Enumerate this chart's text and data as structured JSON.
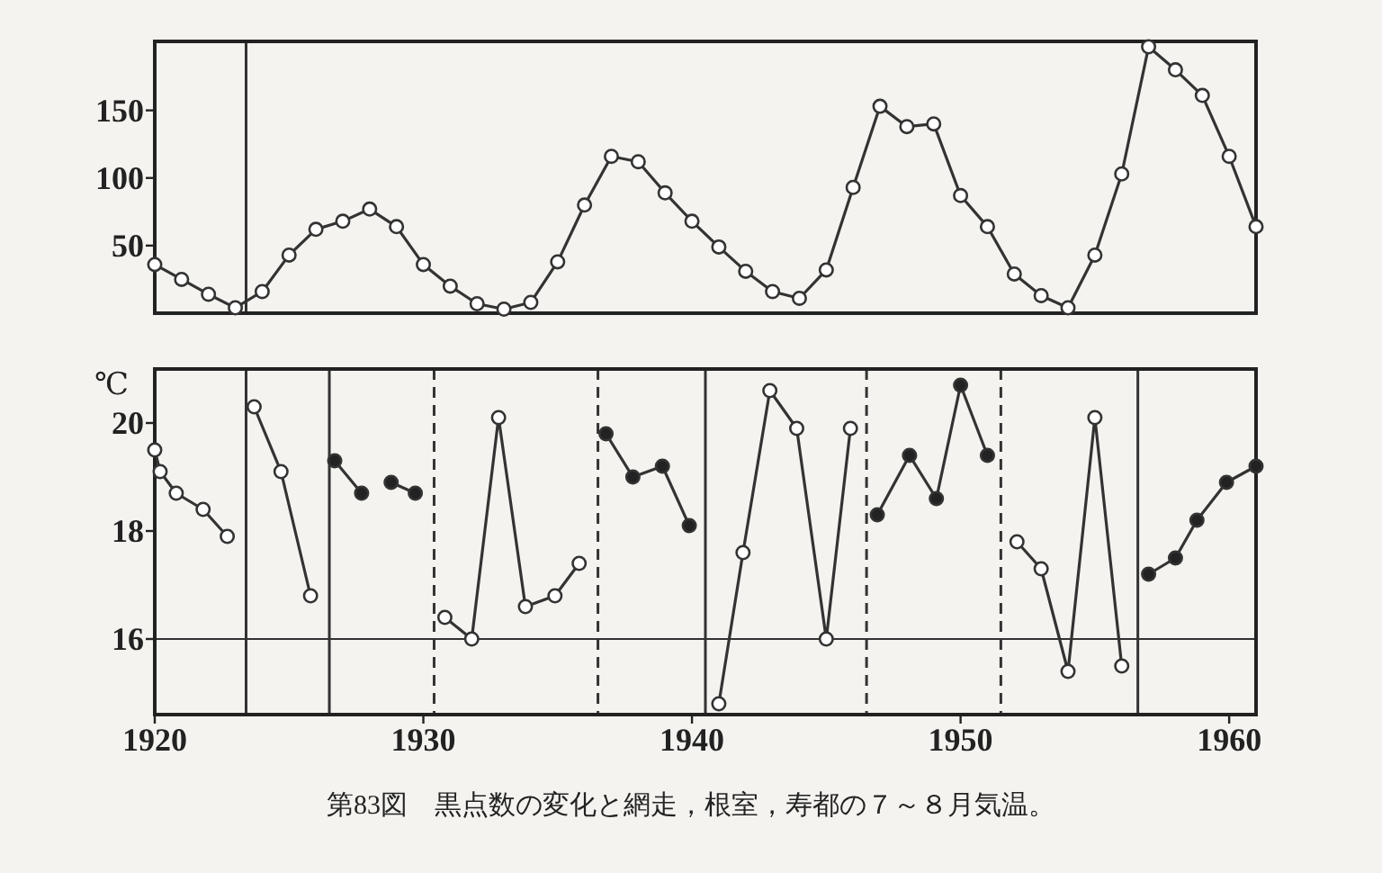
{
  "chart_data": [
    {
      "type": "line",
      "x": [
        1920,
        1921,
        1922,
        1923,
        1924,
        1925,
        1926,
        1927,
        1928,
        1929,
        1930,
        1931,
        1932,
        1933,
        1934,
        1935,
        1936,
        1937,
        1938,
        1939,
        1940,
        1941,
        1942,
        1943,
        1944,
        1945,
        1946,
        1947,
        1948,
        1949,
        1950,
        1951,
        1952,
        1953,
        1954,
        1955,
        1956,
        1957,
        1958,
        1959,
        1960,
        1961
      ],
      "xlim": [
        1920,
        1961
      ],
      "ylim": [
        0,
        201
      ],
      "yticks": [
        50,
        100,
        150
      ],
      "tick_labels": "y",
      "marker": "circle",
      "line_style": "solid",
      "grid": false,
      "series": [
        {
          "color": "#333333",
          "values": [
            36,
            25,
            14,
            4,
            16,
            43,
            62,
            68,
            77,
            64,
            36,
            20,
            7,
            3,
            8,
            38,
            80,
            116,
            112,
            89,
            68,
            49,
            31,
            16,
            11,
            32,
            93,
            153,
            138,
            140,
            87,
            64,
            29,
            13,
            4,
            43,
            103,
            197,
            180,
            161,
            116,
            64
          ],
          "colors": [
            "#ffffff",
            "#ffffff",
            "#ffffff",
            "#ffffff",
            "#ffffff",
            "#ffffff",
            "#ffffff",
            "#ffffff",
            "#ffffff",
            "#ffffff",
            "#ffffff",
            "#ffffff",
            "#ffffff",
            "#ffffff",
            "#ffffff",
            "#ffffff",
            "#ffffff",
            "#ffffff",
            "#ffffff",
            "#ffffff",
            "#ffffff",
            "#ffffff",
            "#ffffff",
            "#ffffff",
            "#ffffff",
            "#ffffff",
            "#ffffff",
            "#ffffff",
            "#ffffff",
            "#ffffff",
            "#ffffff",
            "#ffffff",
            "#ffffff",
            "#ffffff",
            "#ffffff",
            "#ffffff",
            "#ffffff",
            "#ffffff",
            "#ffffff",
            "#ffffff",
            "#ffffff",
            "#ffffff"
          ]
        }
      ],
      "ref_lines": [
        {
          "axis": "x",
          "value": 1923.4,
          "line_style": "solid"
        }
      ]
    },
    {
      "type": "line",
      "xlim": [
        1920,
        1961
      ],
      "ylim": [
        14.6,
        21.0
      ],
      "xticks": [
        1920,
        1930,
        1940,
        1950,
        1960
      ],
      "yticks": [
        16,
        18,
        20
      ],
      "ylabel": "℃",
      "marker": "circle",
      "line_style": "solid",
      "grid": false,
      "series": [
        {
          "color": "#333333",
          "x": [
            1920.0,
            1920.2,
            1920.8,
            1921.8,
            1922.7
          ],
          "values": [
            19.5,
            19.1,
            18.7,
            18.4,
            17.9
          ],
          "colors": [
            "#ffffff",
            "#ffffff",
            "#ffffff",
            "#ffffff",
            "#ffffff"
          ]
        },
        {
          "color": "#333333",
          "x": [
            1923.7,
            1924.7,
            1925.8
          ],
          "values": [
            20.3,
            19.1,
            16.8
          ],
          "colors": [
            "#ffffff",
            "#ffffff",
            "#ffffff"
          ]
        },
        {
          "color": "#333333",
          "x": [
            1926.7,
            1927.7
          ],
          "values": [
            19.3,
            18.7
          ],
          "colors": [
            "#222222",
            "#222222"
          ]
        },
        {
          "color": "#333333",
          "x": [
            1928.8,
            1929.7
          ],
          "values": [
            18.9,
            18.7
          ],
          "colors": [
            "#222222",
            "#222222"
          ]
        },
        {
          "color": "#333333",
          "x": [
            1930.8,
            1931.8,
            1932.8,
            1933.8,
            1934.9,
            1935.8
          ],
          "values": [
            16.4,
            16.0,
            20.1,
            16.6,
            16.8,
            17.4
          ],
          "colors": [
            "#ffffff",
            "#ffffff",
            "#ffffff",
            "#ffffff",
            "#ffffff",
            "#ffffff"
          ]
        },
        {
          "color": "#333333",
          "x": [
            1936.8,
            1937.8,
            1938.9,
            1939.9
          ],
          "values": [
            19.8,
            19.0,
            19.2,
            18.1
          ],
          "colors": [
            "#222222",
            "#222222",
            "#222222",
            "#222222"
          ]
        },
        {
          "color": "#333333",
          "x": [
            1941.0,
            1941.9,
            1942.9,
            1943.9,
            1945.0,
            1945.9
          ],
          "values": [
            14.8,
            17.6,
            20.6,
            19.9,
            16.0,
            19.9
          ],
          "colors": [
            "#ffffff",
            "#ffffff",
            "#ffffff",
            "#ffffff",
            "#ffffff",
            "#ffffff"
          ]
        },
        {
          "color": "#333333",
          "x": [
            1946.9,
            1948.1,
            1949.1,
            1950.0,
            1951.0
          ],
          "values": [
            18.3,
            19.4,
            18.6,
            20.7,
            19.4
          ],
          "colors": [
            "#222222",
            "#222222",
            "#222222",
            "#222222",
            "#222222"
          ]
        },
        {
          "color": "#333333",
          "x": [
            1952.1,
            1953.0,
            1954.0,
            1955.0,
            1956.0
          ],
          "values": [
            17.8,
            17.3,
            15.4,
            20.1,
            15.5
          ],
          "colors": [
            "#ffffff",
            "#ffffff",
            "#ffffff",
            "#ffffff",
            "#ffffff"
          ]
        },
        {
          "color": "#333333",
          "x": [
            1957.0,
            1958.0,
            1958.8,
            1959.9,
            1961.0
          ],
          "values": [
            17.2,
            17.5,
            18.2,
            18.9,
            19.2
          ],
          "colors": [
            "#222222",
            "#222222",
            "#222222",
            "#222222",
            "#222222"
          ]
        }
      ],
      "ref_lines": [
        {
          "axis": "y",
          "value": 16,
          "line_style": "solid"
        },
        {
          "axis": "x",
          "value": 1923.4,
          "line_style": "solid"
        },
        {
          "axis": "x",
          "value": 1926.5,
          "line_style": "solid"
        },
        {
          "axis": "x",
          "value": 1930.4,
          "line_style": "dashed"
        },
        {
          "axis": "x",
          "value": 1936.5,
          "line_style": "dashed"
        },
        {
          "axis": "x",
          "value": 1940.5,
          "line_style": "solid"
        },
        {
          "axis": "x",
          "value": 1946.5,
          "line_style": "dashed"
        },
        {
          "axis": "x",
          "value": 1951.5,
          "line_style": "dashed"
        },
        {
          "axis": "x",
          "value": 1956.6,
          "line_style": "solid"
        }
      ],
      "annotations": [
        "第83図　黒点数の変化と網走，根室，寿都の７～８月気温。"
      ]
    }
  ]
}
